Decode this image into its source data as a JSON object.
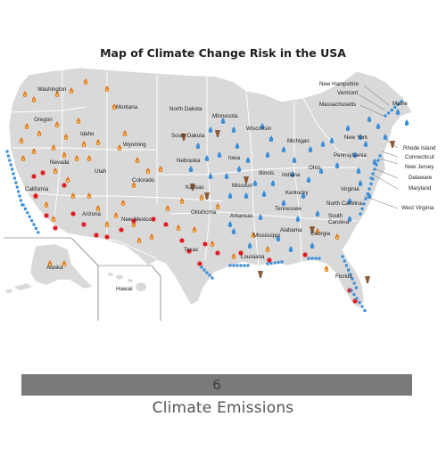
{
  "title": "Map of Climate Change Risk in the USA",
  "footer": {
    "number": "6",
    "label": "Climate Emissions"
  },
  "colors": {
    "land": "#d9d9d9",
    "border": "#ffffff",
    "drought": "#e27a1e",
    "water": "#3d8fd8",
    "heat": "#e0141c",
    "tornado": "#8a5a3a"
  },
  "icons": [
    "fire-drop-icon",
    "water-drop-icon",
    "heat-burst-icon",
    "tornado-icon",
    "sea-level-wave-icon"
  ],
  "states": {
    "washington": "Washington",
    "montana": "Montana",
    "north_dakota": "North Dakota",
    "minnesota": "Minnesota",
    "oregon": "Oregon",
    "idaho": "Idaho",
    "wyoming": "Wyoming",
    "south_dakota": "South Dakota",
    "wisconsin": "Wisconsin",
    "michigan": "Michigan",
    "nevada": "Nevada",
    "utah": "Utah",
    "nebraska": "Nebraska",
    "iowa": "Iowa",
    "illinois": "Illinois",
    "indiana": "Indiana",
    "ohio": "Ohio",
    "pennsylvania": "Pennsylvania",
    "new_york": "New York",
    "california": "California",
    "colorado": "Colorado",
    "kansas": "Kansas",
    "missouri": "Missouri",
    "kentucky": "Kentucky",
    "virginia": "Virginia",
    "arizona": "Arizona",
    "new_mexico": "New Mexico",
    "oklahoma": "Oklahoma",
    "arkansas": "Arkansas",
    "tennessee": "Tennessee",
    "north_carolina": "North Carolina",
    "south_carolina": "South Carolina",
    "texas": "Texas",
    "mississippi": "Mississippi",
    "alabama": "Alabama",
    "georgia": "Georgia",
    "louisiana": "Louisiana",
    "florida": "Florida",
    "alaska": "Alaska",
    "hawaii": "Hawaii",
    "maine": "Maine",
    "new_hampshire": "New Hampshire",
    "vermont": "Vermont",
    "massachusetts": "Massachusetts",
    "rhode_island": "Rhode Island",
    "connecticut": "Connecticut",
    "new_jersey": "New Jersey",
    "delaware": "Delaware",
    "maryland": "Maryland",
    "west_virginia": "West Virginia"
  }
}
